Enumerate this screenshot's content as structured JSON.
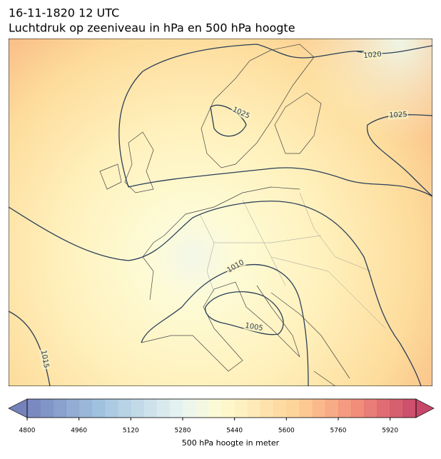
{
  "header": {
    "title": "16-11-1820 12 UTC",
    "subtitle": "Luchtdruk op zeeniveau in hPa en 500 hPa hoogte"
  },
  "map": {
    "isobar_labels": [
      1020,
      1025,
      1025,
      1010,
      1005,
      1015
    ]
  },
  "colorbar": {
    "lim": [
      4800,
      6000
    ],
    "ticks": [
      4800,
      4960,
      5120,
      5280,
      5440,
      5600,
      5760,
      5920
    ],
    "label": "500 hPa hoogte in meter"
  }
}
